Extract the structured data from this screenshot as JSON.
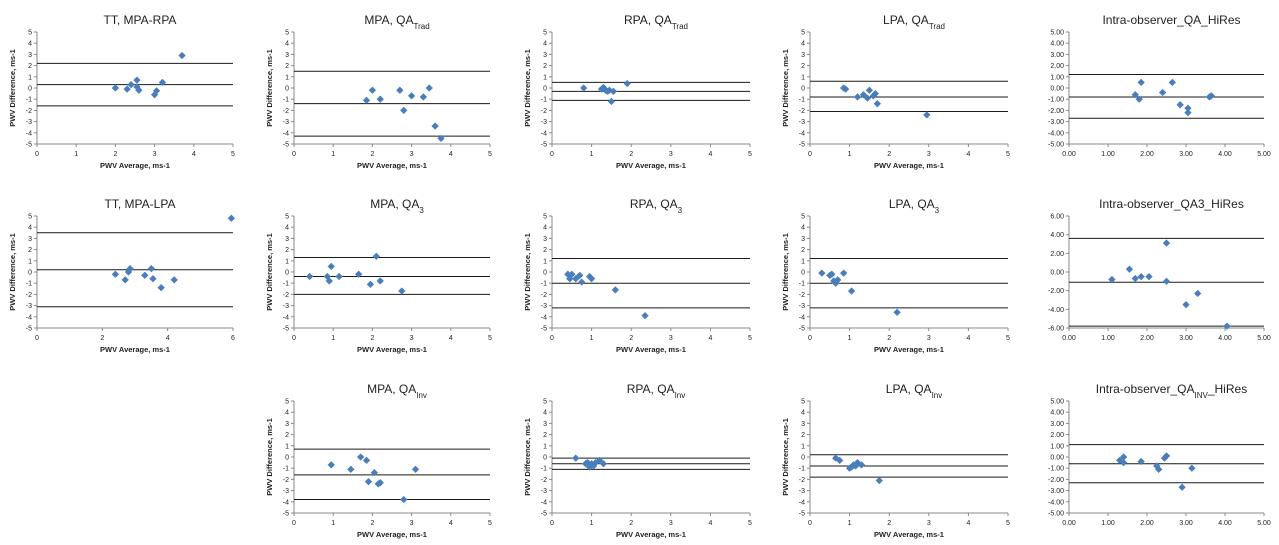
{
  "colors": {
    "marker": "#4a7ebb",
    "line": "#1a1a1a",
    "text": "#222222"
  },
  "chart_data": [
    {
      "type": "scatter",
      "title": "TT, MPA-RPA",
      "title_sub": "",
      "xlabel": "PWV Average, ms-1",
      "ylabel": "PWV Difference, ms-1",
      "xlim": [
        0,
        5
      ],
      "xticks": [
        0,
        1,
        2,
        3,
        4,
        5
      ],
      "xtick_labels": [
        "0",
        "1",
        "2",
        "3",
        "4",
        "5"
      ],
      "ylim": [
        -5,
        5
      ],
      "yticks": [
        5,
        4,
        3,
        2,
        1,
        0,
        -1,
        -2,
        -3,
        -4,
        -5
      ],
      "ytick_labels": [
        "5",
        "4",
        "3",
        "2",
        "1",
        "0",
        "-1",
        "-2",
        "-3",
        "-4",
        "-5"
      ],
      "hlines": [
        2.2,
        0.3,
        -1.6
      ],
      "points": [
        [
          2.0,
          0.0
        ],
        [
          2.3,
          -0.1
        ],
        [
          2.4,
          0.3
        ],
        [
          2.55,
          0.1
        ],
        [
          2.6,
          -0.2
        ],
        [
          2.55,
          0.7
        ],
        [
          3.0,
          -0.6
        ],
        [
          3.05,
          -0.25
        ],
        [
          3.2,
          0.5
        ],
        [
          3.7,
          2.9
        ]
      ]
    },
    {
      "type": "scatter",
      "title": "MPA, QA",
      "title_sub": "Trad",
      "xlabel": "PWV Average, ms-1",
      "ylabel": "PWV Difference, ms-1",
      "xlim": [
        0,
        5
      ],
      "xticks": [
        0,
        1,
        2,
        3,
        4,
        5
      ],
      "xtick_labels": [
        "0",
        "1",
        "2",
        "3",
        "4",
        "5"
      ],
      "ylim": [
        -5,
        5
      ],
      "yticks": [
        5,
        4,
        3,
        2,
        1,
        0,
        -1,
        -2,
        -3,
        -4,
        -5
      ],
      "ytick_labels": [
        "5",
        "4",
        "3",
        "2",
        "1",
        "0",
        "-1",
        "-2",
        "-3",
        "-4",
        "-5"
      ],
      "hlines": [
        1.5,
        -1.4,
        -4.3
      ],
      "points": [
        [
          1.85,
          -1.1
        ],
        [
          2.0,
          -0.2
        ],
        [
          2.2,
          -1.0
        ],
        [
          2.7,
          -0.2
        ],
        [
          2.8,
          -2.0
        ],
        [
          3.0,
          -0.7
        ],
        [
          3.3,
          -0.8
        ],
        [
          3.45,
          0.0
        ],
        [
          3.6,
          -3.4
        ],
        [
          3.75,
          -4.5
        ]
      ]
    },
    {
      "type": "scatter",
      "title": "RPA, QA",
      "title_sub": "Trad",
      "xlabel": "PWV Average, ms-1",
      "ylabel": "PWV Difference, ms-1",
      "xlim": [
        0,
        5
      ],
      "xticks": [
        0,
        1,
        2,
        3,
        4,
        5
      ],
      "xtick_labels": [
        "0",
        "1",
        "2",
        "3",
        "4",
        "5"
      ],
      "ylim": [
        -5,
        5
      ],
      "yticks": [
        5,
        4,
        3,
        2,
        1,
        0,
        -1,
        -2,
        -3,
        -4,
        -5
      ],
      "ytick_labels": [
        "5",
        "4",
        "3",
        "2",
        "1",
        "0",
        "-1",
        "-2",
        "-3",
        "-4",
        "-5"
      ],
      "hlines": [
        0.5,
        -0.3,
        -1.1
      ],
      "points": [
        [
          0.8,
          0.0
        ],
        [
          1.25,
          -0.1
        ],
        [
          1.3,
          0.05
        ],
        [
          1.35,
          -0.2
        ],
        [
          1.4,
          -0.3
        ],
        [
          1.45,
          -0.2
        ],
        [
          1.5,
          -1.2
        ],
        [
          1.55,
          -0.3
        ],
        [
          1.9,
          0.4
        ]
      ]
    },
    {
      "type": "scatter",
      "title": "LPA, QA",
      "title_sub": "Trad",
      "xlabel": "PWV Average, ms-1",
      "ylabel": "PWV Difference, ms-1",
      "xlim": [
        0,
        5
      ],
      "xticks": [
        0,
        1,
        2,
        3,
        4,
        5
      ],
      "xtick_labels": [
        "0",
        "1",
        "2",
        "3",
        "4",
        "5"
      ],
      "ylim": [
        -5,
        5
      ],
      "yticks": [
        5,
        4,
        3,
        2,
        1,
        0,
        -1,
        -2,
        -3,
        -4,
        -5
      ],
      "ytick_labels": [
        "5",
        "4",
        "3",
        "2",
        "1",
        "0",
        "-1",
        "-2",
        "-3",
        "-4",
        "-5"
      ],
      "hlines": [
        0.6,
        -0.8,
        -2.1
      ],
      "points": [
        [
          0.85,
          0.0
        ],
        [
          0.9,
          -0.1
        ],
        [
          1.2,
          -0.8
        ],
        [
          1.35,
          -0.6
        ],
        [
          1.45,
          -0.9
        ],
        [
          1.5,
          -0.2
        ],
        [
          1.6,
          -0.7
        ],
        [
          1.65,
          -0.5
        ],
        [
          1.7,
          -1.4
        ],
        [
          2.95,
          -2.4
        ]
      ]
    },
    {
      "type": "scatter",
      "title": "Intra-observer_QA_HiRes",
      "title_sub": "",
      "xlabel": "",
      "ylabel": "",
      "xlim": [
        0,
        5
      ],
      "xticks": [
        0,
        1,
        2,
        3,
        4,
        5
      ],
      "xtick_labels": [
        "0.00",
        "1.00",
        "2.00",
        "3.00",
        "4.00",
        "5.00"
      ],
      "ylim": [
        -5,
        5
      ],
      "yticks": [
        5,
        4,
        3,
        2,
        1,
        0,
        -1,
        -2,
        -3,
        -4,
        -5
      ],
      "ytick_labels": [
        "5.00",
        "4.00",
        "3.00",
        "2.00",
        "1.00",
        "0.00",
        "-1.00",
        "-2.00",
        "-3.00",
        "-4.00",
        "-5.00"
      ],
      "hlines": [
        1.2,
        -0.8,
        -2.7
      ],
      "points": [
        [
          1.7,
          -0.6
        ],
        [
          1.8,
          -1.0
        ],
        [
          1.85,
          0.5
        ],
        [
          2.4,
          -0.4
        ],
        [
          2.65,
          0.5
        ],
        [
          2.85,
          -1.5
        ],
        [
          3.05,
          -2.2
        ],
        [
          3.05,
          -1.8
        ],
        [
          3.6,
          -0.8
        ],
        [
          3.65,
          -0.7
        ]
      ]
    },
    {
      "type": "scatter",
      "title": "TT, MPA-LPA",
      "title_sub": "",
      "xlabel": "PWV Average, ms-1",
      "ylabel": "PWV Difference, ms-1",
      "xlim": [
        0,
        6
      ],
      "xticks": [
        0,
        2,
        4,
        6
      ],
      "xtick_labels": [
        "0",
        "2",
        "4",
        "6"
      ],
      "ylim": [
        -5,
        5
      ],
      "yticks": [
        5,
        4,
        3,
        2,
        1,
        0,
        -1,
        -2,
        -3,
        -4,
        -5
      ],
      "ytick_labels": [
        "5",
        "4",
        "3",
        "2",
        "1",
        "0",
        "-1",
        "-2",
        "-3",
        "-4",
        "-5"
      ],
      "hlines": [
        3.5,
        0.2,
        -3.1
      ],
      "points": [
        [
          2.4,
          -0.2
        ],
        [
          2.7,
          -0.7
        ],
        [
          2.8,
          0.0
        ],
        [
          2.85,
          0.3
        ],
        [
          3.3,
          -0.3
        ],
        [
          3.5,
          0.3
        ],
        [
          3.55,
          -0.6
        ],
        [
          3.8,
          -1.4
        ],
        [
          4.2,
          -0.7
        ],
        [
          5.95,
          4.8
        ]
      ]
    },
    {
      "type": "scatter",
      "title": "MPA, QA",
      "title_sub": "3",
      "xlabel": "PWV Average, ms-1",
      "ylabel": "PWV Difference, ms-1",
      "xlim": [
        0,
        5
      ],
      "xticks": [
        0,
        1,
        2,
        3,
        4,
        5
      ],
      "xtick_labels": [
        "0",
        "1",
        "2",
        "3",
        "4",
        "5"
      ],
      "ylim": [
        -5,
        5
      ],
      "yticks": [
        5,
        4,
        3,
        2,
        1,
        0,
        -1,
        -2,
        -3,
        -4,
        -5
      ],
      "ytick_labels": [
        "5",
        "4",
        "3",
        "2",
        "1",
        "0",
        "-1",
        "-2",
        "-3",
        "-4",
        "-5"
      ],
      "hlines": [
        1.3,
        -0.4,
        -2.0
      ],
      "points": [
        [
          0.4,
          -0.4
        ],
        [
          0.85,
          -0.4
        ],
        [
          0.9,
          -0.8
        ],
        [
          0.95,
          0.5
        ],
        [
          1.15,
          -0.4
        ],
        [
          1.65,
          -0.2
        ],
        [
          1.95,
          -1.1
        ],
        [
          2.1,
          1.4
        ],
        [
          2.2,
          -0.8
        ],
        [
          2.75,
          -1.7
        ]
      ]
    },
    {
      "type": "scatter",
      "title": "RPA, QA",
      "title_sub": "3",
      "xlabel": "PWV Average, ms-1",
      "ylabel": "PWV Difference, ms-1",
      "xlim": [
        0,
        5
      ],
      "xticks": [
        0,
        1,
        2,
        3,
        4,
        5
      ],
      "xtick_labels": [
        "0",
        "1",
        "2",
        "3",
        "4",
        "5"
      ],
      "ylim": [
        -5,
        5
      ],
      "yticks": [
        5,
        4,
        3,
        2,
        1,
        0,
        -1,
        -2,
        -3,
        -4,
        -5
      ],
      "ytick_labels": [
        "5",
        "4",
        "3",
        "2",
        "1",
        "0",
        "-1",
        "-2",
        "-3",
        "-4",
        "-5"
      ],
      "hlines": [
        1.2,
        -1.0,
        -3.2
      ],
      "points": [
        [
          0.4,
          -0.2
        ],
        [
          0.45,
          -0.6
        ],
        [
          0.5,
          -0.2
        ],
        [
          0.6,
          -0.6
        ],
        [
          0.7,
          -0.3
        ],
        [
          0.75,
          -0.9
        ],
        [
          0.95,
          -0.4
        ],
        [
          1.0,
          -0.6
        ],
        [
          1.6,
          -1.6
        ],
        [
          2.35,
          -3.9
        ]
      ]
    },
    {
      "type": "scatter",
      "title": "LPA, QA",
      "title_sub": "3",
      "xlabel": "PWV Average, ms-1",
      "ylabel": "PWV Difference, ms-1",
      "xlim": [
        0,
        5
      ],
      "xticks": [
        0,
        1,
        2,
        3,
        4,
        5
      ],
      "xtick_labels": [
        "0",
        "1",
        "2",
        "3",
        "4",
        "5"
      ],
      "ylim": [
        -5,
        5
      ],
      "yticks": [
        5,
        4,
        3,
        2,
        1,
        0,
        -1,
        -2,
        -3,
        -4,
        -5
      ],
      "ytick_labels": [
        "5",
        "4",
        "3",
        "2",
        "1",
        "0",
        "-1",
        "-2",
        "-3",
        "-4",
        "-5"
      ],
      "hlines": [
        1.2,
        -1.0,
        -3.2
      ],
      "points": [
        [
          0.3,
          -0.1
        ],
        [
          0.5,
          -0.3
        ],
        [
          0.55,
          -0.2
        ],
        [
          0.6,
          -0.8
        ],
        [
          0.65,
          -1.0
        ],
        [
          0.7,
          -0.7
        ],
        [
          0.85,
          -0.1
        ],
        [
          1.05,
          -1.7
        ],
        [
          2.2,
          -3.6
        ]
      ]
    },
    {
      "type": "scatter",
      "title": "Intra-observer_QA3_HiRes",
      "title_sub": "",
      "xlabel": "",
      "ylabel": "",
      "xlim": [
        0,
        5
      ],
      "xticks": [
        0,
        1,
        2,
        3,
        4,
        5
      ],
      "xtick_labels": [
        "0.00",
        "1.00",
        "2.00",
        "3.00",
        "4.00",
        "5.00"
      ],
      "ylim": [
        -6,
        6
      ],
      "yticks": [
        6,
        4,
        2,
        0,
        -2,
        -4,
        -6
      ],
      "ytick_labels": [
        "6.00",
        "4.00",
        "2.00",
        "0.00",
        "-2.00",
        "-4.00",
        "-6.00"
      ],
      "hlines": [
        3.6,
        -1.1,
        -5.8
      ],
      "points": [
        [
          1.1,
          -0.8
        ],
        [
          1.55,
          0.3
        ],
        [
          1.7,
          -0.7
        ],
        [
          1.85,
          -0.5
        ],
        [
          2.05,
          -0.5
        ],
        [
          2.5,
          3.1
        ],
        [
          2.5,
          -1.0
        ],
        [
          3.0,
          -3.5
        ],
        [
          3.3,
          -2.3
        ],
        [
          4.05,
          -5.8
        ]
      ]
    },
    {
      "type": "scatter",
      "title": "MPA, QA",
      "title_sub": "Inv",
      "xlabel": "PWV Average, ms-1",
      "ylabel": "PWV Difference, ms-1",
      "xlim": [
        0,
        5
      ],
      "xticks": [
        0,
        1,
        2,
        3,
        4,
        5
      ],
      "xtick_labels": [
        "0",
        "1",
        "2",
        "3",
        "4",
        "5"
      ],
      "ylim": [
        -5,
        5
      ],
      "yticks": [
        5,
        4,
        3,
        2,
        1,
        0,
        -1,
        -2,
        -3,
        -4,
        -5
      ],
      "ytick_labels": [
        "5",
        "4",
        "3",
        "2",
        "1",
        "0",
        "-1",
        "-2",
        "-3",
        "-4",
        "-5"
      ],
      "hlines": [
        0.7,
        -1.6,
        -3.8
      ],
      "points": [
        [
          0.95,
          -0.7
        ],
        [
          1.45,
          -1.1
        ],
        [
          1.7,
          0.0
        ],
        [
          1.85,
          -0.3
        ],
        [
          1.9,
          -2.2
        ],
        [
          2.05,
          -1.4
        ],
        [
          2.15,
          -2.4
        ],
        [
          2.2,
          -2.3
        ],
        [
          2.8,
          -3.8
        ],
        [
          3.1,
          -1.1
        ]
      ]
    },
    {
      "type": "scatter",
      "title": "RPA, QA",
      "title_sub": "Inv",
      "xlabel": "PWV Average, ms-1",
      "ylabel": "PWV Difference, ms-1",
      "xlim": [
        0,
        5
      ],
      "xticks": [
        0,
        1,
        2,
        3,
        4,
        5
      ],
      "xtick_labels": [
        "0",
        "1",
        "2",
        "3",
        "4",
        "5"
      ],
      "ylim": [
        -5,
        5
      ],
      "yticks": [
        5,
        4,
        3,
        2,
        1,
        0,
        -1,
        -2,
        -3,
        -4,
        -5
      ],
      "ytick_labels": [
        "5",
        "4",
        "3",
        "2",
        "1",
        "0",
        "-1",
        "-2",
        "-3",
        "-4",
        "-5"
      ],
      "hlines": [
        -0.1,
        -0.6,
        -1.1
      ],
      "points": [
        [
          0.6,
          -0.1
        ],
        [
          0.85,
          -0.6
        ],
        [
          0.9,
          -0.5
        ],
        [
          0.95,
          -0.9
        ],
        [
          1.0,
          -0.6
        ],
        [
          1.05,
          -0.8
        ],
        [
          1.1,
          -0.5
        ],
        [
          1.2,
          -0.3
        ],
        [
          1.3,
          -0.6
        ]
      ]
    },
    {
      "type": "scatter",
      "title": "LPA, QA",
      "title_sub": "Inv",
      "xlabel": "PWV Average, ms-1",
      "ylabel": "PWV Difference, ms-1",
      "xlim": [
        0,
        5
      ],
      "xticks": [
        0,
        1,
        2,
        3,
        4,
        5
      ],
      "xtick_labels": [
        "0",
        "1",
        "2",
        "3",
        "4",
        "5"
      ],
      "ylim": [
        -5,
        5
      ],
      "yticks": [
        5,
        4,
        3,
        2,
        1,
        0,
        -1,
        -2,
        -3,
        -4,
        -5
      ],
      "ytick_labels": [
        "5",
        "4",
        "3",
        "2",
        "1",
        "0",
        "-1",
        "-2",
        "-3",
        "-4",
        "-5"
      ],
      "hlines": [
        0.2,
        -0.8,
        -1.8
      ],
      "points": [
        [
          0.65,
          -0.1
        ],
        [
          0.75,
          -0.3
        ],
        [
          1.0,
          -1.0
        ],
        [
          1.05,
          -0.9
        ],
        [
          1.1,
          -0.7
        ],
        [
          1.15,
          -0.8
        ],
        [
          1.2,
          -0.5
        ],
        [
          1.3,
          -0.7
        ],
        [
          1.75,
          -2.1
        ]
      ]
    },
    {
      "type": "scatter",
      "title": "Intra-observer_QA",
      "title_sub": "INV",
      "title_suffix": "_HiRes",
      "xlabel": "",
      "ylabel": "",
      "xlim": [
        0,
        5
      ],
      "xticks": [
        0,
        1,
        2,
        3,
        4,
        5
      ],
      "xtick_labels": [
        "0.00",
        "1.00",
        "2.00",
        "3.00",
        "4.00",
        "5.00"
      ],
      "ylim": [
        -5,
        5
      ],
      "yticks": [
        5,
        4,
        3,
        2,
        1,
        0,
        -1,
        -2,
        -3,
        -4,
        -5
      ],
      "ytick_labels": [
        "5.00",
        "4.00",
        "3.00",
        "2.00",
        "1.00",
        "0.00",
        "-1.00",
        "-2.00",
        "-3.00",
        "-4.00",
        "-5.00"
      ],
      "hlines": [
        1.1,
        -0.6,
        -2.3
      ],
      "points": [
        [
          1.3,
          -0.3
        ],
        [
          1.4,
          -0.5
        ],
        [
          1.4,
          0.0
        ],
        [
          1.85,
          -0.4
        ],
        [
          2.25,
          -0.8
        ],
        [
          2.3,
          -1.1
        ],
        [
          2.45,
          -0.1
        ],
        [
          2.5,
          0.1
        ],
        [
          2.9,
          -2.7
        ],
        [
          3.15,
          -1.0
        ]
      ]
    }
  ]
}
